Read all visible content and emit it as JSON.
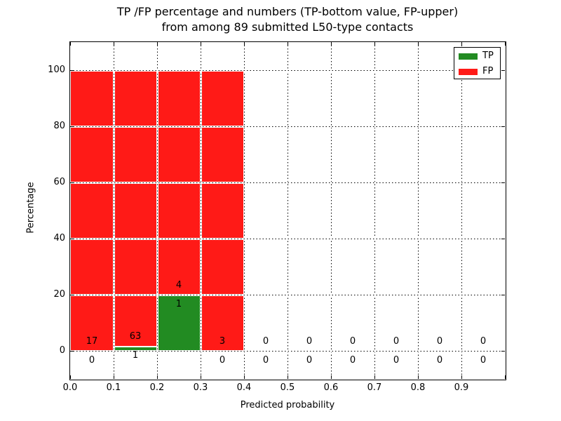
{
  "title": {
    "line1": "TP /FP percentage and numbers (TP-bottom value, FP-upper)",
    "line2": "from among 89 submitted L50-type contacts"
  },
  "axes": {
    "xlabel": "Predicted probability",
    "ylabel": "Percentage",
    "x_tick_labels": [
      "0.0",
      "0.1",
      "0.2",
      "0.3",
      "0.4",
      "0.5",
      "0.6",
      "0.7",
      "0.8",
      "0.9"
    ],
    "y_tick_labels": [
      "0",
      "20",
      "40",
      "60",
      "80",
      "100"
    ],
    "y_tick_values": [
      0,
      20,
      40,
      60,
      80,
      100
    ]
  },
  "legend": {
    "items": [
      {
        "label": "TP",
        "color": "#228b22"
      },
      {
        "label": "FP",
        "color": "#ff1a17"
      }
    ]
  },
  "colors": {
    "tp": "#228b22",
    "fp": "#ff1a17",
    "grid": "#000000",
    "background": "#ffffff"
  },
  "chart_data": {
    "type": "bar",
    "stacked": true,
    "title": "TP /FP percentage and numbers (TP-bottom value, FP-upper) from among 89 submitted L50-type contacts",
    "xlabel": "Predicted probability",
    "ylabel": "Percentage",
    "xlim": [
      0.0,
      1.0
    ],
    "ylim": [
      -10,
      110
    ],
    "grid": "dotted",
    "legend_position": "upper right",
    "total_contacts": 89,
    "bin_width": 0.1,
    "categories": [
      "0.0-0.1",
      "0.1-0.2",
      "0.2-0.3",
      "0.3-0.4",
      "0.4-0.5",
      "0.5-0.6",
      "0.6-0.7",
      "0.7-0.8",
      "0.8-0.9",
      "0.9-1.0"
    ],
    "series": [
      {
        "name": "TP",
        "color": "#228b22",
        "counts": [
          0,
          1,
          1,
          0,
          0,
          0,
          0,
          0,
          0,
          0
        ],
        "percentages": [
          0,
          1.5625,
          20,
          0,
          0,
          0,
          0,
          0,
          0,
          0
        ]
      },
      {
        "name": "FP",
        "color": "#ff1a17",
        "counts": [
          17,
          63,
          4,
          3,
          0,
          0,
          0,
          0,
          0,
          0
        ],
        "percentages": [
          100,
          98.4375,
          80,
          100,
          0,
          0,
          0,
          0,
          0,
          0
        ]
      }
    ],
    "bar_labels": {
      "upper_fp": [
        "17",
        "63",
        "4",
        "3",
        "0",
        "0",
        "0",
        "0",
        "0",
        "0"
      ],
      "lower_tp": [
        "0",
        "1",
        "1",
        "0",
        "0",
        "0",
        "0",
        "0",
        "0",
        "0"
      ]
    }
  }
}
